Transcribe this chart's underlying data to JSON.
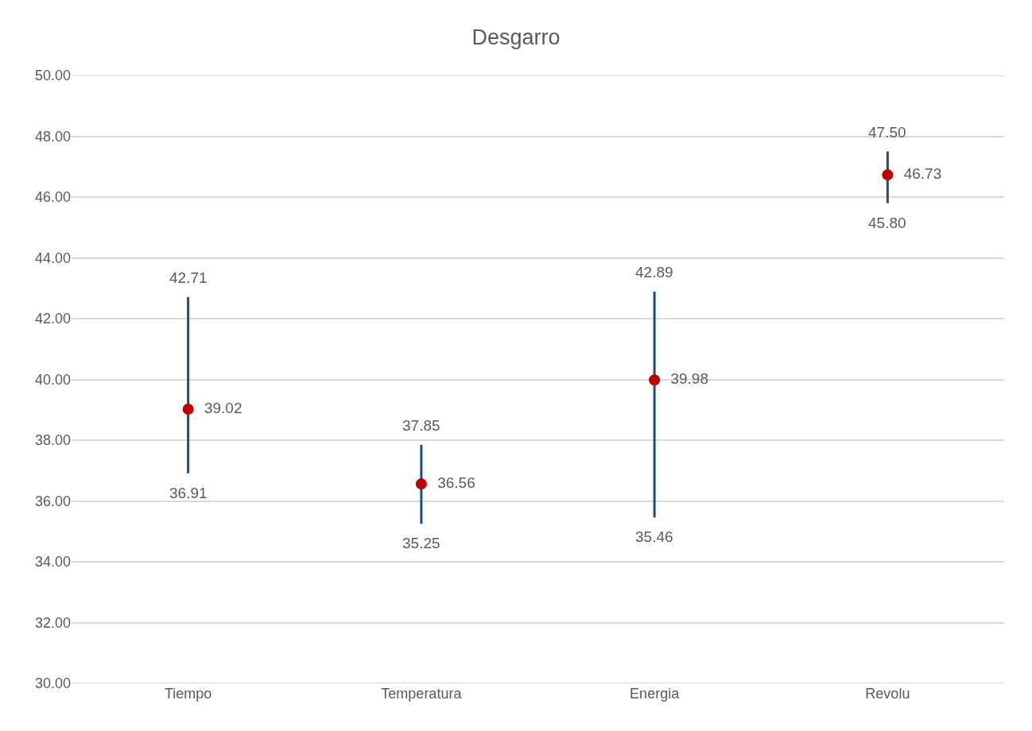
{
  "chart_data": {
    "type": "scatter",
    "title": "Desgarro",
    "categories": [
      "Tiempo",
      "Temperatura",
      "Energia",
      "Revolu"
    ],
    "series": [
      {
        "color": "#c00000",
        "values": [
          39.02,
          36.56,
          39.98,
          46.73
        ],
        "errors": [
          [
            36.91,
            42.71
          ],
          [
            35.25,
            37.85
          ],
          [
            35.46,
            42.89
          ],
          [
            45.8,
            47.5
          ]
        ]
      }
    ],
    "data_labels": true,
    "annotations": [
      {
        "text": "42.71",
        "x": "Tiempo",
        "y": 42.71
      },
      {
        "text": "36.91",
        "x": "Tiempo",
        "y": 36.91
      },
      {
        "text": "37.85",
        "x": "Temperatura",
        "y": 37.85
      },
      {
        "text": "35.25",
        "x": "Temperatura",
        "y": 35.25
      },
      {
        "text": "42.89",
        "x": "Energia",
        "y": 42.89
      },
      {
        "text": "35.46",
        "x": "Energia",
        "y": 35.46
      },
      {
        "text": "47.50",
        "x": "Revolu",
        "y": 47.5
      },
      {
        "text": "45.80",
        "x": "Revolu",
        "y": 45.8
      }
    ],
    "ylim": [
      30,
      50
    ],
    "yticks": [
      {
        "value": 30,
        "label": "30.00"
      },
      {
        "value": 32,
        "label": "32.00"
      },
      {
        "value": 34,
        "label": "34.00"
      },
      {
        "value": 36,
        "label": "36.00"
      },
      {
        "value": 38,
        "label": "38.00"
      },
      {
        "value": 40,
        "label": "40.00"
      },
      {
        "value": 42,
        "label": "42.00"
      },
      {
        "value": 44,
        "label": "44.00"
      },
      {
        "value": 46,
        "label": "46.00"
      },
      {
        "value": 48,
        "label": "48.00"
      },
      {
        "value": 50,
        "label": "50.00"
      }
    ],
    "grid": "y",
    "legend": false,
    "marker": "circle"
  }
}
